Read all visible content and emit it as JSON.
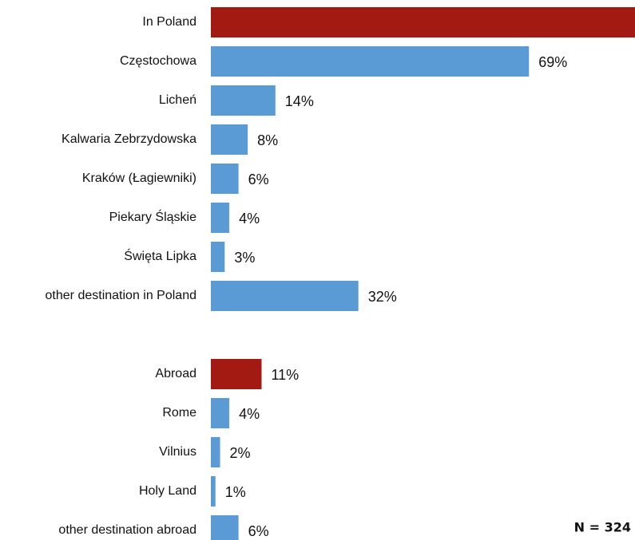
{
  "chart_data": [
    {
      "type": "bar",
      "orientation": "horizontal",
      "categories": [
        "In Poland",
        "Częstochowa",
        "Licheń",
        "Kalwaria Zebrzydowska",
        "Kraków (Łagiewniki)",
        "Piekary Śląskie",
        "Święta Lipka",
        "other destination in Poland"
      ],
      "values": [
        92,
        69,
        14,
        8,
        6,
        4,
        3,
        32
      ],
      "value_labels": [
        null,
        "69%",
        "14%",
        "8%",
        "6%",
        "4%",
        "3%",
        "32%"
      ],
      "colors": [
        "#a31a12",
        "#5b9bd5",
        "#5b9bd5",
        "#5b9bd5",
        "#5b9bd5",
        "#5b9bd5",
        "#5b9bd5",
        "#5b9bd5"
      ],
      "xlim": [
        0,
        92
      ]
    },
    {
      "type": "bar",
      "orientation": "horizontal",
      "categories": [
        "Abroad",
        "Rome",
        "Vilnius",
        "Holy Land",
        "other destination abroad"
      ],
      "values": [
        11,
        4,
        2,
        1,
        6
      ],
      "value_labels": [
        "11%",
        "4%",
        "2%",
        "1%",
        "6%"
      ],
      "colors": [
        "#a31a12",
        "#5b9bd5",
        "#5b9bd5",
        "#5b9bd5",
        "#5b9bd5"
      ],
      "xlim": [
        0,
        92
      ]
    }
  ],
  "note": "N = 324"
}
